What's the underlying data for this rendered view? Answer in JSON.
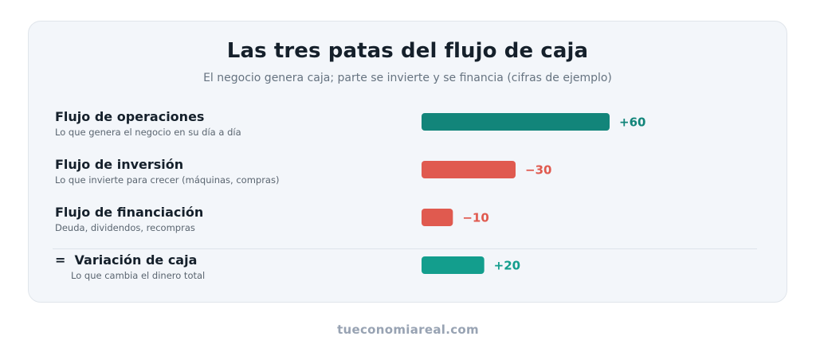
{
  "title": "Las tres patas del flujo de caja",
  "subtitle": "El negocio genera caja; parte se invierte y se financia (cifras de ejemplo)",
  "rows": [
    {
      "label": "Flujo de operaciones",
      "desc": "Lo que genera el negocio en su día a día",
      "value": 60,
      "value_label": "+60",
      "color": "#12857a"
    },
    {
      "label": "Flujo de inversión",
      "desc": "Lo que invierte para crecer (máquinas, compras)",
      "value": -30,
      "value_label": "−30",
      "color": "#e05a4f"
    },
    {
      "label": "Flujo de financiación",
      "desc": "Deuda, dividendos, recompras",
      "value": -10,
      "value_label": "−10",
      "color": "#e05a4f"
    }
  ],
  "total": {
    "prefix": "=",
    "label": "Variación de caja",
    "desc": "Lo que cambia el dinero total",
    "value": 20,
    "value_label": "+20",
    "color": "#139e8d"
  },
  "chart_data": {
    "type": "bar",
    "orientation": "horizontal",
    "title": "Las tres patas del flujo de caja",
    "subtitle": "El negocio genera caja; parte se invierte y se financia (cifras de ejemplo)",
    "categories": [
      "Flujo de operaciones",
      "Flujo de inversión",
      "Flujo de financiación",
      "Variación de caja"
    ],
    "values": [
      60,
      -30,
      -10,
      20
    ],
    "data_labels": [
      "+60",
      "−30",
      "−10",
      "+20"
    ],
    "colors": [
      "#12857a",
      "#e05a4f",
      "#e05a4f",
      "#139e8d"
    ],
    "grid": false,
    "legend": "none"
  },
  "footer": "tueconomiareal.com"
}
